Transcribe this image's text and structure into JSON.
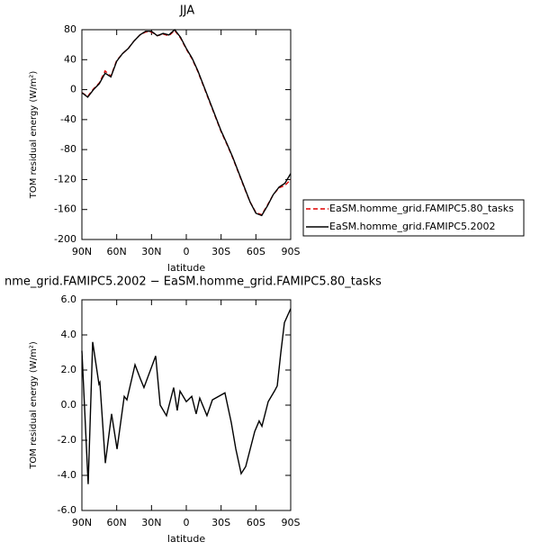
{
  "chart_data": [
    {
      "type": "line",
      "title": "JJA",
      "xlabel": "latitude",
      "ylabel": "TOM residual energy (W/m²)",
      "xlim": [
        90,
        -90
      ],
      "xticks": [
        {
          "value": 90,
          "label": "90N"
        },
        {
          "value": 60,
          "label": "60N"
        },
        {
          "value": 30,
          "label": "30N"
        },
        0,
        {
          "value": -30,
          "label": "30S"
        },
        {
          "value": -60,
          "label": "60S"
        },
        {
          "value": -90,
          "label": "90S"
        }
      ],
      "ylim": [
        -200,
        80
      ],
      "yticks": [
        -200,
        -160,
        -120,
        -80,
        -40,
        0,
        40,
        80
      ],
      "x": [
        90,
        85,
        80,
        75,
        70,
        65,
        60,
        55,
        50,
        45,
        40,
        35,
        30,
        25,
        20,
        15,
        10,
        5,
        0,
        -5,
        -10,
        -15,
        -20,
        -25,
        -30,
        -35,
        -40,
        -45,
        -50,
        -55,
        -60,
        -65,
        -70,
        -75,
        -80,
        -85,
        -90
      ],
      "series": [
        {
          "name": "EaSM.homme_grid.FAMIPC5.80_tasks",
          "color": "#e00000",
          "style": "dashed",
          "values": [
            -4,
            -9,
            1,
            9,
            25,
            18,
            39,
            48,
            55,
            65,
            73,
            77,
            77,
            72,
            74,
            72,
            79,
            69,
            54,
            41,
            24,
            4,
            -16,
            -36,
            -56,
            -73,
            -91,
            -111,
            -131,
            -150,
            -164,
            -167,
            -154,
            -140,
            -131,
            -128,
            -120
          ]
        },
        {
          "name": "EaSM.homme_grid.FAMIPC5.2002",
          "color": "#000000",
          "style": "solid",
          "values": [
            -4,
            -10,
            0,
            8,
            22,
            17,
            38,
            48,
            55,
            65,
            73,
            78,
            78,
            72,
            75,
            73,
            80,
            70,
            55,
            42,
            25,
            5,
            -15,
            -35,
            -55,
            -72,
            -90,
            -110,
            -130,
            -150,
            -165,
            -168,
            -155,
            -140,
            -130,
            -125,
            -112
          ]
        }
      ]
    },
    {
      "type": "line",
      "title": "nme_grid.FAMIPC5.2002 − EaSM.homme_grid.FAMIPC5.80_tasks",
      "xlabel": "latitude",
      "ylabel": "TOM residual energy (W/m²)",
      "xlim": [
        90,
        -90
      ],
      "xticks": [
        {
          "value": 90,
          "label": "90N"
        },
        {
          "value": 60,
          "label": "60N"
        },
        {
          "value": 30,
          "label": "30N"
        },
        0,
        {
          "value": -30,
          "label": "30S"
        },
        {
          "value": -60,
          "label": "60S"
        },
        {
          "value": -90,
          "label": "90S"
        }
      ],
      "ylim": [
        -6,
        6
      ],
      "yticks": [
        {
          "value": -6,
          "label": "-6.0"
        },
        {
          "value": -4,
          "label": "-4.0"
        },
        {
          "value": -2,
          "label": "-2.0"
        },
        {
          "value": 0,
          "label": "0.0"
        },
        {
          "value": 2,
          "label": "2.0"
        },
        {
          "value": 4,
          "label": "4.0"
        },
        {
          "value": 6,
          "label": "6.0"
        }
      ],
      "x": [
        90,
        84.6,
        80.7,
        75.3,
        74.5,
        69.8,
        64.4,
        59.7,
        53.5,
        51.2,
        44.2,
        39.6,
        36.5,
        26.4,
        22.5,
        17.1,
        10.9,
        7.8,
        5.4,
        0,
        -4.7,
        -8.5,
        -11.6,
        -17.8,
        -22.5,
        -33.3,
        -38.8,
        -42.7,
        -47.3,
        -51.2,
        -59,
        -62.8,
        -65.2,
        -70.6,
        -76,
        -78.4,
        -81.5,
        -84.6,
        -90
      ],
      "series": [
        {
          "color": "#000000",
          "style": "solid",
          "values": [
            3.1,
            -4.5,
            3.6,
            1.2,
            1.3,
            -3.3,
            -0.5,
            -2.5,
            0.5,
            0.3,
            2.3,
            1.5,
            1.0,
            2.8,
            0,
            -0.6,
            1.0,
            -0.3,
            0.8,
            0.2,
            0.5,
            -0.5,
            0.4,
            -0.6,
            0.3,
            0.7,
            -1,
            -2.5,
            -3.9,
            -3.5,
            -1.5,
            -0.9,
            -1.2,
            0.2,
            0.8,
            1.1,
            3,
            4.7,
            5.5
          ]
        }
      ]
    }
  ]
}
